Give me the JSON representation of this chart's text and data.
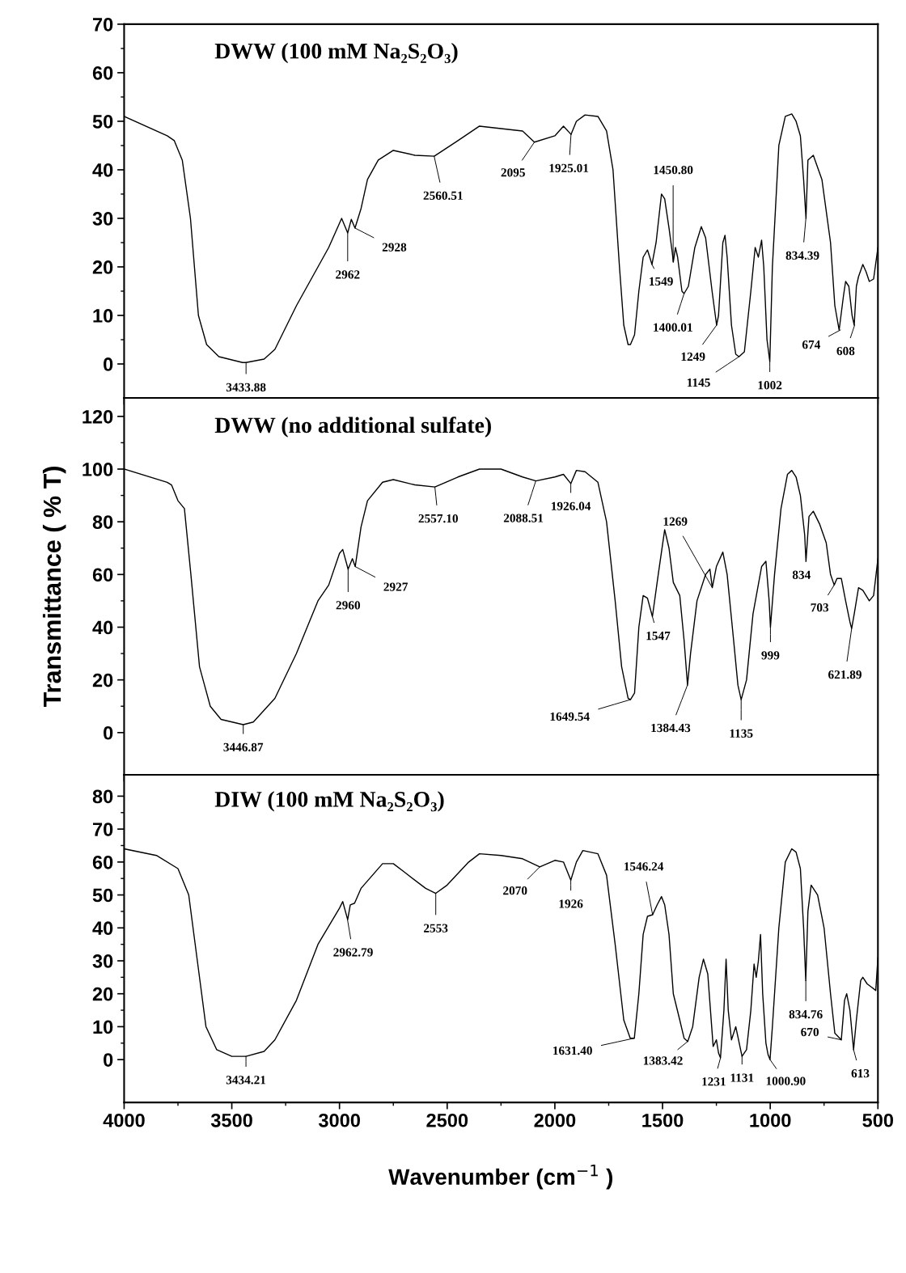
{
  "chart_data": [
    {
      "type": "line",
      "title": "DWW (100 mM Na₂S₂O₃)",
      "xlim": [
        4000,
        500
      ],
      "ylim": [
        -7,
        70
      ],
      "yticks": [
        0,
        10,
        20,
        30,
        40,
        50,
        60,
        70
      ],
      "xticks": [
        4000,
        3500,
        3000,
        2500,
        2000,
        1500,
        1000,
        500
      ],
      "tick_labels": "y",
      "grid": false,
      "legend": false,
      "marker": "none",
      "line_style": "solid",
      "series": [
        {
          "color": "#000000",
          "x": [
            4000,
            3800,
            3767,
            3730,
            3692,
            3655,
            3617,
            3560,
            3450,
            3434,
            3350,
            3300,
            3200,
            3100,
            3050,
            2990,
            2962,
            2945,
            2928,
            2900,
            2870,
            2820,
            2750,
            2650,
            2560,
            2450,
            2350,
            2250,
            2150,
            2095,
            2000,
            1960,
            1925,
            1900,
            1860,
            1800,
            1760,
            1730,
            1700,
            1680,
            1660,
            1649,
            1630,
            1610,
            1590,
            1570,
            1549,
            1530,
            1505,
            1490,
            1470,
            1455,
            1450,
            1440,
            1430,
            1410,
            1400,
            1380,
            1350,
            1320,
            1300,
            1270,
            1249,
            1240,
            1220,
            1210,
            1200,
            1180,
            1160,
            1145,
            1120,
            1090,
            1070,
            1055,
            1040,
            1030,
            1015,
            1002,
            990,
            960,
            930,
            900,
            880,
            860,
            845,
            834,
            825,
            800,
            760,
            720,
            700,
            680,
            660,
            650,
            635,
            620,
            610,
            600,
            590,
            570,
            555,
            540,
            520,
            500
          ],
          "values": [
            51,
            47,
            46,
            42,
            30,
            10,
            4,
            1.5,
            0.3,
            0.3,
            1,
            3,
            12,
            20,
            24,
            30,
            27,
            29.8,
            28,
            32,
            38,
            42,
            44,
            43,
            42.8,
            46,
            49,
            48.5,
            48,
            45.7,
            47,
            49,
            47.3,
            50,
            51.3,
            51,
            48,
            40,
            20,
            8,
            4,
            4,
            6,
            15,
            22,
            23.5,
            20.5,
            25,
            35,
            34,
            28,
            23,
            21,
            24,
            22,
            15,
            14.5,
            16,
            24,
            28.3,
            26,
            15,
            8,
            10,
            25,
            26.5,
            22,
            8,
            2,
            1.5,
            2.5,
            15,
            24,
            22,
            25.5,
            20,
            5,
            0.5,
            20,
            45,
            51,
            51.5,
            50,
            47,
            38,
            30,
            42,
            43,
            38,
            25,
            12,
            7,
            14,
            17,
            16,
            10,
            8,
            16,
            18,
            20.5,
            19,
            17,
            17.5,
            24
          ]
        }
      ],
      "annotations": [
        {
          "text": "3433.88",
          "x": 3433.88,
          "y": 0.3
        },
        {
          "text": "2962",
          "x": 2962,
          "y": 27
        },
        {
          "text": "2928",
          "x": 2928,
          "y": 28
        },
        {
          "text": "2560.51",
          "x": 2560.51,
          "y": 42.8
        },
        {
          "text": "2095",
          "x": 2095,
          "y": 45.7
        },
        {
          "text": "1925.01",
          "x": 1925.01,
          "y": 47.3
        },
        {
          "text": "1450.80",
          "x": 1450.8,
          "y": 21
        },
        {
          "text": "1549",
          "x": 1549,
          "y": 20.5
        },
        {
          "text": "1400.01",
          "x": 1400.01,
          "y": 14.5
        },
        {
          "text": "1249",
          "x": 1249,
          "y": 8
        },
        {
          "text": "1145",
          "x": 1145,
          "y": 1.5
        },
        {
          "text": "1002",
          "x": 1002,
          "y": 0.5
        },
        {
          "text": "834.39",
          "x": 834.39,
          "y": 30
        },
        {
          "text": "674",
          "x": 674,
          "y": 7
        },
        {
          "text": "608",
          "x": 608,
          "y": 8
        }
      ]
    },
    {
      "type": "line",
      "title": "DWW (no additional sulfate)",
      "ylabel": "Transmittance ( % T)",
      "xlim": [
        4000,
        500
      ],
      "ylim": [
        -16,
        127
      ],
      "yticks": [
        0,
        20,
        40,
        60,
        80,
        100,
        120
      ],
      "xticks": [
        4000,
        3500,
        3000,
        2500,
        2000,
        1500,
        1000,
        500
      ],
      "tick_labels": "y",
      "grid": false,
      "legend": false,
      "marker": "none",
      "line_style": "solid",
      "series": [
        {
          "color": "#000000",
          "x": [
            4000,
            3800,
            3780,
            3750,
            3720,
            3690,
            3650,
            3600,
            3550,
            3447,
            3400,
            3300,
            3200,
            3100,
            3050,
            3000,
            2985,
            2960,
            2940,
            2927,
            2900,
            2870,
            2800,
            2750,
            2650,
            2557,
            2450,
            2350,
            2250,
            2150,
            2088,
            2000,
            1960,
            1926,
            1900,
            1860,
            1800,
            1760,
            1720,
            1690,
            1660,
            1649,
            1630,
            1610,
            1590,
            1570,
            1547,
            1520,
            1490,
            1470,
            1450,
            1420,
            1400,
            1384,
            1370,
            1340,
            1300,
            1280,
            1269,
            1250,
            1220,
            1200,
            1170,
            1150,
            1135,
            1110,
            1080,
            1040,
            1020,
            1005,
            999,
            980,
            950,
            920,
            900,
            880,
            860,
            840,
            834,
            820,
            800,
            770,
            740,
            720,
            703,
            690,
            670,
            650,
            630,
            622,
            610,
            590,
            570,
            540,
            520,
            500
          ],
          "values": [
            100,
            95,
            94,
            88,
            85,
            60,
            25,
            10,
            5,
            3,
            4,
            13,
            30,
            50,
            56,
            68,
            69.5,
            62,
            66,
            63,
            78,
            88,
            95,
            96,
            94,
            93.2,
            97,
            100,
            100,
            97,
            95.5,
            97,
            98,
            94.5,
            99.5,
            99,
            95,
            80,
            50,
            25,
            13,
            12.5,
            15,
            40,
            52,
            51,
            44,
            60,
            77,
            70,
            57,
            52,
            35,
            18,
            30,
            50,
            60,
            62,
            55,
            63,
            68.5,
            60,
            35,
            18,
            12.5,
            20,
            45,
            63,
            65,
            50,
            40,
            60,
            85,
            98,
            99.5,
            97,
            90,
            75,
            65,
            82,
            84,
            79,
            72,
            60,
            56,
            58.5,
            58.5,
            50,
            42,
            39.5,
            45,
            55,
            54,
            50,
            52,
            66
          ]
        }
      ],
      "annotations": [
        {
          "text": "3446.87",
          "x": 3446.87,
          "y": 3
        },
        {
          "text": "2960",
          "x": 2960,
          "y": 62
        },
        {
          "text": "2927",
          "x": 2927,
          "y": 63
        },
        {
          "text": "2557.10",
          "x": 2557.1,
          "y": 93.2
        },
        {
          "text": "2088.51",
          "x": 2088.51,
          "y": 95.5
        },
        {
          "text": "1926.04",
          "x": 1926.04,
          "y": 94.5
        },
        {
          "text": "1269",
          "x": 1269,
          "y": 55
        },
        {
          "text": "1547",
          "x": 1547,
          "y": 44
        },
        {
          "text": "1384.43",
          "x": 1384.43,
          "y": 18
        },
        {
          "text": "1649.54",
          "x": 1649.54,
          "y": 12.5
        },
        {
          "text": "1135",
          "x": 1135,
          "y": 12.5
        },
        {
          "text": "999",
          "x": 999,
          "y": 40
        },
        {
          "text": "834",
          "x": 834,
          "y": 65
        },
        {
          "text": "703",
          "x": 703,
          "y": 56
        },
        {
          "text": "621.89",
          "x": 621.89,
          "y": 39.5
        }
      ]
    },
    {
      "type": "line",
      "title": "DIW (100 mM Na₂S₂O₃)",
      "xlabel": "Wavenumber (cm$^{−1}$ )",
      "xlim": [
        4000,
        500
      ],
      "ylim": [
        -13,
        86.5
      ],
      "yticks": [
        0,
        10,
        20,
        30,
        40,
        50,
        60,
        70,
        80
      ],
      "xticks": [
        4000,
        3500,
        3000,
        2500,
        2000,
        1500,
        1000,
        500
      ],
      "grid": false,
      "legend": false,
      "marker": "none",
      "line_style": "solid",
      "series": [
        {
          "color": "#000000",
          "x": [
            4000,
            3850,
            3750,
            3700,
            3660,
            3620,
            3570,
            3500,
            3434,
            3350,
            3300,
            3200,
            3100,
            3000,
            2985,
            2962,
            2950,
            2930,
            2900,
            2800,
            2750,
            2700,
            2600,
            2553,
            2500,
            2400,
            2350,
            2250,
            2150,
            2070,
            2000,
            1960,
            1926,
            1900,
            1870,
            1800,
            1760,
            1720,
            1680,
            1650,
            1631,
            1610,
            1590,
            1570,
            1546,
            1525,
            1505,
            1490,
            1470,
            1450,
            1420,
            1400,
            1383,
            1360,
            1330,
            1310,
            1290,
            1265,
            1250,
            1240,
            1231,
            1215,
            1205,
            1195,
            1180,
            1160,
            1131,
            1110,
            1090,
            1075,
            1065,
            1055,
            1045,
            1035,
            1020,
            1010,
            1000.9,
            990,
            960,
            930,
            900,
            880,
            860,
            845,
            835,
            825,
            810,
            780,
            750,
            720,
            700,
            670,
            655,
            645,
            630,
            613,
            600,
            580,
            570,
            550,
            530,
            510,
            500
          ],
          "values": [
            64,
            62,
            58,
            50,
            30,
            10,
            3,
            1,
            1,
            2.5,
            6,
            18,
            35,
            46,
            48,
            42.5,
            47,
            47.5,
            52,
            59.5,
            59.5,
            57,
            52,
            50.5,
            53,
            60,
            62.5,
            62,
            61,
            58.5,
            60.5,
            60,
            54.5,
            60,
            63.5,
            62.5,
            56,
            35,
            12,
            6.5,
            6.5,
            20,
            38,
            43.5,
            44,
            47,
            49.5,
            47,
            38,
            20,
            12,
            6.5,
            5.5,
            10,
            25,
            30.5,
            26,
            4,
            6,
            2,
            0.5,
            15,
            30.5,
            15,
            6,
            10,
            1,
            3,
            15,
            29,
            25,
            30,
            38,
            20,
            5,
            1.5,
            0,
            10,
            40,
            60,
            64,
            63,
            58,
            40,
            24,
            45,
            53,
            50,
            40,
            20,
            8,
            6,
            18,
            20,
            15,
            3,
            12,
            24,
            25,
            23,
            22,
            21,
            31
          ]
        }
      ],
      "annotations": [
        {
          "text": "3434.21",
          "x": 3434.21,
          "y": 1
        },
        {
          "text": "2962.79",
          "x": 2962.79,
          "y": 42.5
        },
        {
          "text": "2553",
          "x": 2553,
          "y": 50.5
        },
        {
          "text": "2070",
          "x": 2070,
          "y": 58.5
        },
        {
          "text": "1926",
          "x": 1926,
          "y": 54.5
        },
        {
          "text": "1546.24",
          "x": 1546.24,
          "y": 44
        },
        {
          "text": "1631.40",
          "x": 1631.4,
          "y": 6.5
        },
        {
          "text": "1383.42",
          "x": 1383.42,
          "y": 5.5
        },
        {
          "text": "1231",
          "x": 1231,
          "y": 0.5
        },
        {
          "text": "1131",
          "x": 1131,
          "y": 1
        },
        {
          "text": "1000.90",
          "x": 1000.9,
          "y": 0
        },
        {
          "text": "834.76",
          "x": 834.76,
          "y": 24
        },
        {
          "text": "670",
          "x": 670,
          "y": 6
        },
        {
          "text": "613",
          "x": 613,
          "y": 3
        }
      ]
    }
  ]
}
